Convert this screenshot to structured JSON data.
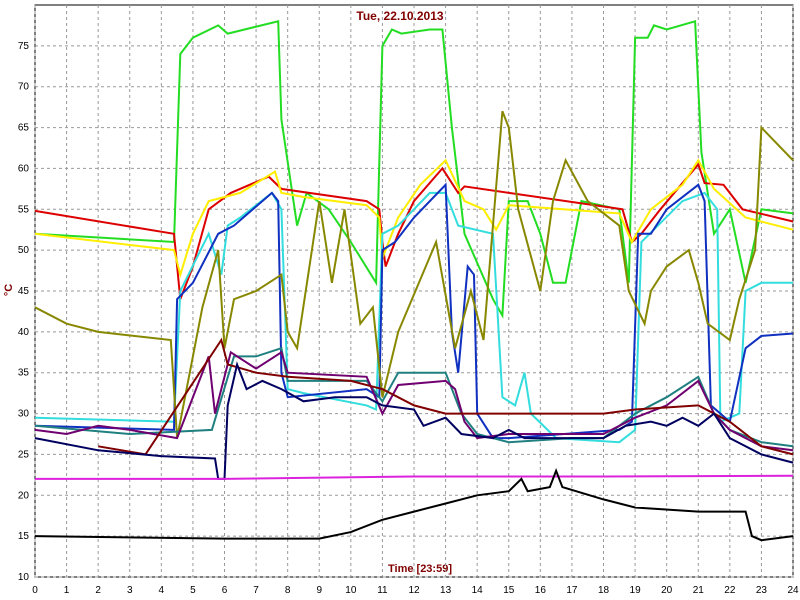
{
  "chart_data": {
    "type": "line",
    "title": "Tue, 22.10.2013",
    "xlabel": "Time [23:59]",
    "ylabel": "°C",
    "xlim": [
      0,
      24
    ],
    "ylim": [
      10,
      80
    ],
    "xticks": [
      0,
      1,
      2,
      3,
      4,
      5,
      6,
      7,
      8,
      9,
      10,
      11,
      12,
      13,
      14,
      15,
      16,
      17,
      18,
      19,
      20,
      21,
      22,
      23,
      24
    ],
    "yticks": [
      10,
      15,
      20,
      25,
      30,
      35,
      40,
      45,
      50,
      55,
      60,
      65,
      70,
      75
    ],
    "grid": true,
    "series": [
      {
        "color": "#22dd22",
        "x": [
          0,
          4.4,
          4.6,
          5,
          5.8,
          6.1,
          7.7,
          7.8,
          8.3,
          8.6,
          9.3,
          10,
          10.8,
          11,
          11.3,
          11.6,
          12.5,
          12.9,
          13.2,
          13.6,
          14.5,
          14.8,
          15,
          15.6,
          16,
          16.4,
          16.8,
          17.3,
          18.5,
          18.8,
          19,
          19.4,
          19.6,
          20,
          20.9,
          21.1,
          21.5,
          22,
          22.5,
          23,
          24
        ],
        "values": [
          52,
          51,
          74,
          76,
          77.5,
          76.5,
          78,
          66,
          53,
          57,
          55,
          51,
          46,
          75,
          77,
          76.5,
          77,
          77,
          65,
          52,
          44,
          42,
          56,
          56,
          52,
          46,
          46,
          56,
          55,
          46,
          76,
          76,
          77.5,
          77,
          78,
          62,
          52,
          55,
          46,
          55,
          54.5
        ]
      },
      {
        "color": "#dd0000",
        "x": [
          0,
          4.4,
          4.6,
          5,
          5.5,
          6.2,
          7.4,
          7.8,
          10.5,
          10.9,
          11,
          11.1,
          11.5,
          12,
          12.9,
          13.4,
          13.6,
          18.6,
          18.9,
          19.2,
          19.8,
          21,
          21.2,
          21.8,
          22.4,
          24
        ],
        "values": [
          54.8,
          52,
          44,
          48,
          55,
          57,
          59,
          57.5,
          56,
          55,
          51,
          48,
          52,
          56,
          60,
          57,
          57.8,
          55,
          51,
          52,
          55,
          60.5,
          58.2,
          58,
          55,
          53.5
        ]
      },
      {
        "color": "#ffee00",
        "x": [
          0,
          4.4,
          4.6,
          5,
          5.5,
          6.5,
          7.6,
          7.8,
          8.5,
          10.5,
          10.9,
          11,
          11.5,
          12.2,
          13,
          13.6,
          14.2,
          14.6,
          15,
          18.5,
          18.9,
          19.5,
          20.5,
          21,
          21.5,
          22.5,
          24
        ],
        "values": [
          52,
          50,
          47,
          52,
          56,
          57,
          59.6,
          57,
          56.5,
          55.5,
          54,
          49,
          54,
          58,
          61,
          56,
          55,
          52.5,
          55.5,
          54.5,
          51,
          55,
          58,
          61,
          57.5,
          54,
          52.5
        ]
      },
      {
        "color": "#33dddd",
        "x": [
          0,
          4.4,
          4.6,
          5.5,
          5.9,
          6.1,
          6.5,
          7.5,
          7.8,
          8,
          8.5,
          10.5,
          10.8,
          11,
          11.5,
          12.5,
          13,
          13.4,
          14.5,
          14.8,
          15.2,
          15.5,
          15.7,
          16.5,
          18.5,
          19,
          19.2,
          20.5,
          21.2,
          21.6,
          21.7,
          22.3,
          22.5,
          23,
          24
        ],
        "values": [
          29.5,
          29,
          45,
          52,
          47,
          53,
          54,
          57,
          55,
          33,
          32.5,
          31,
          30.5,
          52,
          53,
          57,
          57,
          53,
          52,
          32,
          31,
          35,
          30,
          27,
          26.5,
          28,
          51,
          56,
          57,
          55,
          29,
          30,
          45,
          46,
          46
        ]
      },
      {
        "color": "#1030c0",
        "x": [
          0,
          4.4,
          4.5,
          5,
          5.8,
          6.3,
          7.5,
          7.7,
          7.8,
          8,
          10.5,
          10.9,
          11,
          11.4,
          12,
          13,
          13.2,
          13.4,
          13.7,
          13.9,
          14,
          14.5,
          15,
          18.5,
          18.9,
          19.1,
          19.5,
          20,
          21,
          21.2,
          21.4,
          22,
          22.5,
          23,
          24
        ],
        "values": [
          28.5,
          28,
          44,
          46,
          52,
          53,
          57,
          56,
          35,
          32,
          33,
          32,
          50,
          51,
          54,
          58,
          40,
          35,
          48,
          47,
          30,
          27,
          27,
          28,
          29,
          52,
          52,
          55,
          58,
          56,
          31,
          29,
          38,
          39.5,
          39.8
        ]
      },
      {
        "color": "#888800",
        "x": [
          0,
          1,
          2,
          4.3,
          4.5,
          5.3,
          5.8,
          6,
          6.3,
          7,
          7.8,
          8,
          8.3,
          9,
          9.4,
          9.8,
          10.3,
          10.7,
          11,
          11.5,
          12.7,
          13.3,
          13.8,
          14.2,
          14.8,
          15,
          15.3,
          16,
          16.4,
          16.8,
          17.5,
          18.5,
          18.8,
          19.3,
          19.5,
          20,
          20.7,
          21,
          21.3,
          22,
          22.3,
          22.8,
          23,
          23.5,
          24
        ],
        "values": [
          43,
          41,
          40,
          39,
          27,
          43,
          50,
          38,
          44,
          45,
          47,
          40,
          38,
          56,
          46,
          55,
          41,
          43,
          32,
          40,
          51,
          38,
          45,
          39,
          67,
          65,
          55,
          45,
          56,
          61,
          56,
          53,
          45,
          41,
          45,
          48,
          50,
          46,
          41,
          39,
          44,
          50,
          65,
          63,
          61
        ]
      },
      {
        "color": "#208080",
        "x": [
          0,
          3,
          5.6,
          6.3,
          7,
          7.8,
          8,
          10.5,
          11,
          11.5,
          13,
          13.5,
          14,
          15,
          17,
          18,
          19,
          20,
          21,
          21.5,
          22,
          23,
          24
        ],
        "values": [
          28.5,
          27.5,
          28,
          37,
          37,
          38,
          34,
          34,
          31.5,
          35,
          35,
          30,
          27.5,
          26.5,
          27,
          27,
          30,
          32,
          34.5,
          30,
          28,
          26.5,
          26
        ]
      },
      {
        "color": "#700070",
        "x": [
          0,
          1,
          2,
          3,
          4.5,
          5.5,
          5.7,
          6.2,
          7,
          7.8,
          8,
          10.5,
          11,
          11.5,
          13,
          13.3,
          13.6,
          14,
          15,
          18,
          19,
          20,
          21,
          21.5,
          22,
          23,
          24
        ],
        "values": [
          28,
          27.5,
          28.5,
          28,
          27,
          37,
          30,
          37.5,
          35.5,
          37.5,
          35,
          34.5,
          30,
          33.5,
          34,
          33,
          29,
          27,
          27.5,
          27.5,
          29.5,
          31,
          34,
          30,
          28,
          26,
          25.5
        ]
      },
      {
        "color": "#800000",
        "x": [
          2,
          3.5,
          5.9,
          6.1,
          7,
          8,
          10,
          11,
          12,
          13,
          18,
          19,
          21,
          22,
          23,
          24
        ],
        "values": [
          26,
          25,
          39,
          36,
          35,
          34.5,
          34,
          33,
          31,
          30,
          30,
          30.5,
          31,
          29,
          26,
          25
        ]
      },
      {
        "color": "#000060",
        "x": [
          0,
          2,
          4,
          5.7,
          5.8,
          6,
          6.1,
          6.4,
          6.7,
          7.2,
          7.8,
          8.5,
          9.5,
          10.5,
          11,
          12,
          12.3,
          13,
          13.5,
          14.5,
          15,
          15.5,
          18,
          18.7,
          19.5,
          20,
          20.5,
          21,
          21.5,
          22,
          23,
          24
        ],
        "values": [
          27,
          25.5,
          24.8,
          24.5,
          22,
          22,
          31,
          36,
          33,
          34,
          33,
          31.5,
          32,
          32,
          31,
          30.5,
          28.5,
          29.5,
          27.5,
          27,
          28,
          27,
          27,
          28.5,
          29,
          28.5,
          29.5,
          28.5,
          30,
          27,
          25,
          24
        ]
      },
      {
        "color": "#dd22dd",
        "x": [
          0,
          6,
          12,
          18,
          24
        ],
        "values": [
          22,
          22,
          22.3,
          22.3,
          22.4
        ]
      },
      {
        "color": "#000000",
        "x": [
          0,
          6,
          9,
          10,
          11,
          12,
          13,
          14,
          15,
          15.4,
          15.6,
          16.3,
          16.5,
          16.7,
          18,
          19,
          21,
          22.5,
          22.7,
          23,
          24
        ],
        "values": [
          15,
          14.7,
          14.7,
          15.5,
          17,
          18,
          19,
          20,
          20.5,
          22,
          20.5,
          21,
          23,
          21,
          19.5,
          18.5,
          18,
          18,
          15,
          14.5,
          15
        ]
      }
    ]
  }
}
